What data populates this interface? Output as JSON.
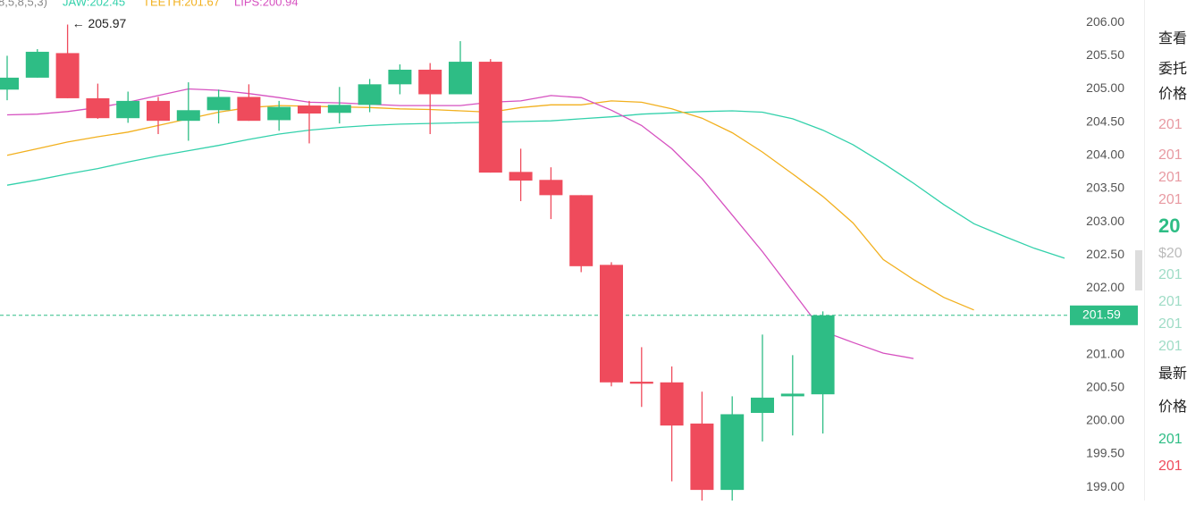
{
  "chart_data": {
    "type": "candlestick",
    "indicator_params": "8,5,8,5,3)",
    "categories": [
      null,
      null,
      null,
      null,
      null,
      null,
      null,
      null,
      null,
      null,
      null,
      null,
      null,
      null,
      null,
      null,
      null,
      null,
      null,
      null,
      null,
      null,
      null,
      null,
      null,
      null,
      null,
      null,
      null,
      null,
      null,
      null,
      null,
      null,
      null,
      null
    ],
    "candles": {
      "up_color": "#2ebd85",
      "down_color": "#ef4b5c",
      "open": [
        204.99,
        205.17,
        205.54,
        204.86,
        204.56,
        204.82,
        204.52,
        204.68,
        204.88,
        204.53,
        204.75,
        204.64,
        204.76,
        205.07,
        205.29,
        204.92,
        205.41,
        203.75,
        203.63,
        203.4,
        202.35,
        200.59,
        200.58,
        199.96,
        198.96,
        200.12,
        200.37,
        200.4
      ],
      "high": [
        205.5,
        205.6,
        205.97,
        205.08,
        204.96,
        204.88,
        205.1,
        204.99,
        205.07,
        204.82,
        204.82,
        205.03,
        205.15,
        205.37,
        205.39,
        205.72,
        205.45,
        204.1,
        203.82,
        203.4,
        202.39,
        201.11,
        200.82,
        200.44,
        200.37,
        201.3,
        200.99,
        201.65
      ],
      "low": [
        204.83,
        205.17,
        204.86,
        204.55,
        204.49,
        204.32,
        204.22,
        204.48,
        204.52,
        204.37,
        204.18,
        204.48,
        204.65,
        204.92,
        204.32,
        204.92,
        203.74,
        203.31,
        203.04,
        202.24,
        200.52,
        200.21,
        199.09,
        198.8,
        198.8,
        199.69,
        199.78,
        199.81
      ],
      "close": [
        205.17,
        205.56,
        204.86,
        204.56,
        204.82,
        204.52,
        204.68,
        204.88,
        204.52,
        204.73,
        204.63,
        204.76,
        205.07,
        205.29,
        204.92,
        205.41,
        203.74,
        203.62,
        203.4,
        202.33,
        200.58,
        200.56,
        199.93,
        198.96,
        200.1,
        200.35,
        200.41,
        201.59
      ]
    },
    "series": [
      {
        "name": "JAW:202.45",
        "color": "#33d1ab",
        "values": [
          203.55,
          203.63,
          203.72,
          203.8,
          203.9,
          203.99,
          204.07,
          204.15,
          204.24,
          204.32,
          204.38,
          204.42,
          204.45,
          204.47,
          204.48,
          204.49,
          204.5,
          204.51,
          204.52,
          204.55,
          204.58,
          204.62,
          204.64,
          204.66,
          204.67,
          204.65,
          204.55,
          204.38,
          204.16,
          203.88,
          203.58,
          203.26,
          202.97,
          202.78,
          202.6,
          202.45
        ]
      },
      {
        "name": "TEETH:201.67",
        "color": "#f2b01e",
        "values": [
          204.0,
          204.1,
          204.2,
          204.28,
          204.35,
          204.45,
          204.55,
          204.65,
          204.72,
          204.75,
          204.74,
          204.73,
          204.72,
          204.7,
          204.69,
          204.67,
          204.65,
          204.72,
          204.76,
          204.76,
          204.82,
          204.8,
          204.7,
          204.56,
          204.34,
          204.05,
          203.72,
          203.38,
          202.98,
          202.43,
          202.13,
          201.86,
          201.67,
          null,
          null,
          null
        ]
      },
      {
        "name": "LIPS:200.94",
        "color": "#d651c0",
        "values": [
          204.61,
          204.62,
          204.66,
          204.72,
          204.8,
          204.9,
          205.0,
          204.98,
          204.93,
          204.87,
          204.8,
          204.79,
          204.77,
          204.75,
          204.75,
          204.75,
          204.8,
          204.82,
          204.9,
          204.87,
          204.68,
          204.45,
          204.1,
          203.65,
          203.1,
          202.55,
          201.95,
          201.35,
          201.18,
          201.02,
          200.94,
          null,
          null,
          null,
          null,
          null
        ]
      }
    ],
    "high_label": "← 205.97",
    "last_price": {
      "value": 201.59,
      "label": "201.59"
    },
    "ylim": [
      198.8,
      206.34
    ],
    "yticks": [
      {
        "value": 199,
        "label": "199.00"
      },
      {
        "value": 199.5,
        "label": "199.50"
      },
      {
        "value": 200,
        "label": "200.00"
      },
      {
        "value": 200.5,
        "label": "200.50"
      },
      {
        "value": 201,
        "label": "201.00"
      },
      {
        "value": 201.5,
        "label": "201.50"
      },
      {
        "value": 202,
        "label": "202.00"
      },
      {
        "value": 202.5,
        "label": "202.50"
      },
      {
        "value": 203,
        "label": "203.00"
      },
      {
        "value": 203.5,
        "label": "203.50"
      },
      {
        "value": 204,
        "label": "204.00"
      },
      {
        "value": 204.5,
        "label": "204.50"
      },
      {
        "value": 205,
        "label": "205.00"
      },
      {
        "value": 205.5,
        "label": "205.50"
      },
      {
        "value": 206,
        "label": "206.00"
      }
    ]
  },
  "sidebar": {
    "items": [
      "查看",
      "委托",
      "价格",
      "201",
      "201",
      "201",
      "201",
      "20",
      "$20",
      "201",
      "201",
      "201",
      "201",
      "最新",
      "价格",
      "201",
      "201"
    ]
  }
}
